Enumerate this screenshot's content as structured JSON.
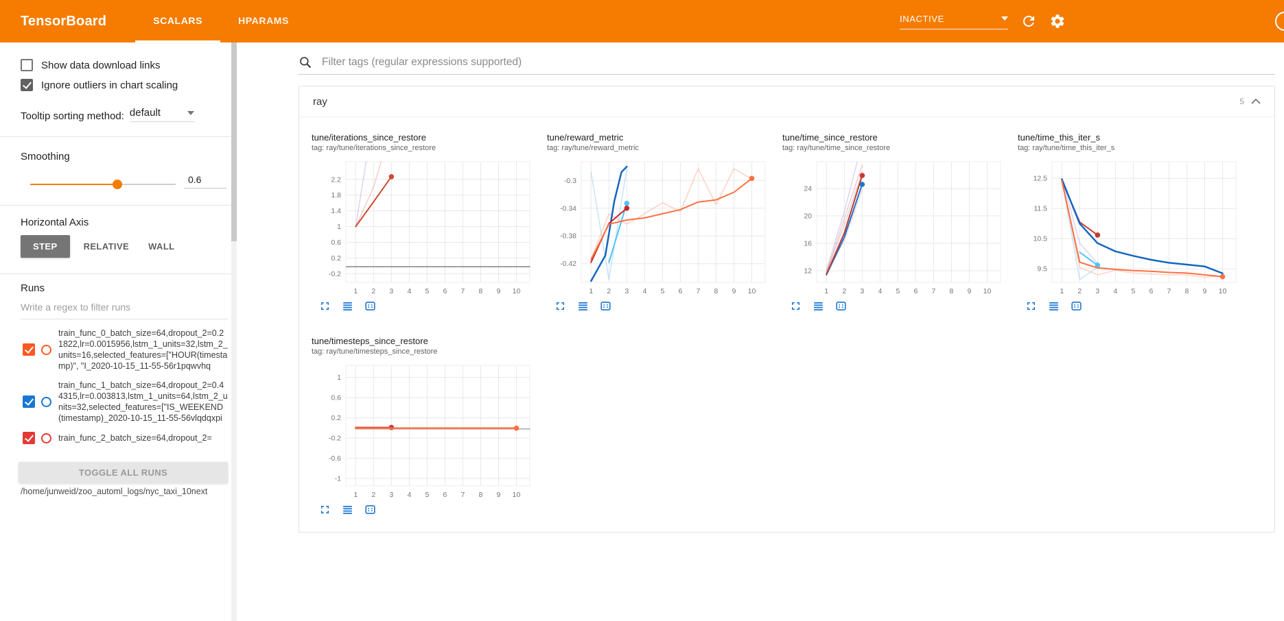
{
  "header": {
    "title": "TensorBoard",
    "tabs": [
      {
        "label": "SCALARS"
      },
      {
        "label": "HPARAMS"
      }
    ],
    "active_tab": "SCALARS",
    "status": "INACTIVE"
  },
  "colors": {
    "header_bg": "#f57c00",
    "accent_blue": "#1976d2",
    "slider_orange": "#f57c00"
  },
  "sidebar": {
    "show_data_download_links": {
      "label": "Show data download links",
      "checked": false
    },
    "ignore_outliers": {
      "label": "Ignore outliers in chart scaling",
      "checked": true
    },
    "tooltip_sorting": {
      "label": "Tooltip sorting method:",
      "value": "default"
    },
    "smoothing": {
      "label": "Smoothing",
      "value": "0.6",
      "fraction": 0.6
    },
    "horizontal_axis": {
      "label": "Horizontal Axis",
      "options": [
        "STEP",
        "RELATIVE",
        "WALL"
      ],
      "selected": "STEP"
    },
    "runs": {
      "label": "Runs",
      "filter_placeholder": "Write a regex to filter runs",
      "items": [
        {
          "label": "train_func_0_batch_size=64,dropout_2=0.21822,lr=0.0015956,lstm_1_units=32,lstm_2_units=16,selected_features=[\"HOUR(timestamp)\", \"I_2020-10-15_11-55-56r1pqwvhq",
          "checked": true,
          "color": "#ff5722"
        },
        {
          "label": "train_func_1_batch_size=64,dropout_2=0.44315,lr=0.003813,lstm_1_units=64,lstm_2_units=32,selected_features=[\"IS_WEEKEND(timestamp)_2020-10-15_11-55-56vlqdqxpi",
          "checked": true,
          "color": "#1976d2"
        },
        {
          "label": "train_func_2_batch_size=64,dropout_2=",
          "checked": true,
          "color": "#e53935"
        }
      ],
      "toggle_all_label": "TOGGLE ALL RUNS",
      "log_dir": "/home/junweid/zoo_automl_logs/nyc_taxi_10next"
    }
  },
  "main": {
    "filter_placeholder": "Filter tags (regular expressions supported)",
    "section": {
      "title": "ray",
      "count": "5"
    },
    "chart_toolbar_icons": [
      "expand-icon",
      "data-table-icon",
      "fit-domain-icon"
    ],
    "charts": [
      {
        "title": "tune/iterations_since_restore",
        "tag": "tag: ray/tune/iterations_since_restore",
        "type": "line",
        "x_ticks": [
          1,
          2,
          3,
          4,
          5,
          6,
          7,
          8,
          9,
          10
        ],
        "x_range": [
          0.45,
          10.75
        ],
        "y_ticks": [
          -0.2,
          0.2,
          0.6,
          1,
          1.4,
          1.8,
          2.2
        ],
        "y_range": [
          -0.42,
          2.65
        ],
        "series": [
          {
            "color": "#b39ddb",
            "opacity": 0.45,
            "width": 1.5,
            "points": [
              [
                1,
                1
              ],
              [
                1.62,
                2.75
              ]
            ]
          },
          {
            "color": "#e57373",
            "opacity": 0.35,
            "width": 1.5,
            "points": [
              [
                1,
                1
              ],
              [
                2,
                2
              ],
              [
                2.52,
                2.8
              ]
            ]
          },
          {
            "color": "#757575",
            "opacity": 0.9,
            "width": 1.5,
            "points": [
              [
                0.45,
                -0.02
              ],
              [
                10.75,
                -0.02
              ]
            ]
          },
          {
            "color": "#cc4b37",
            "opacity": 1,
            "width": 2,
            "points": [
              [
                1,
                1
              ],
              [
                2,
                1.63
              ],
              [
                3,
                2.27
              ]
            ],
            "end_dot": true
          }
        ]
      },
      {
        "title": "tune/reward_metric",
        "tag": "tag: ray/tune/reward_metric",
        "type": "line",
        "x_ticks": [
          1,
          2,
          3,
          4,
          5,
          6,
          7,
          8,
          9,
          10
        ],
        "x_range": [
          0.45,
          10.75
        ],
        "y_ticks": [
          -0.42,
          -0.38,
          -0.34,
          -0.3
        ],
        "y_range": [
          -0.447,
          -0.273
        ],
        "series": [
          {
            "color": "#90caf9",
            "opacity": 0.5,
            "width": 1.5,
            "points": [
              [
                1,
                -0.288
              ],
              [
                2,
                -0.443
              ],
              [
                3,
                -0.283
              ]
            ]
          },
          {
            "color": "#ffab91",
            "opacity": 0.55,
            "width": 1.5,
            "points": [
              [
                1,
                -0.413
              ],
              [
                2,
                -0.348
              ],
              [
                3,
                -0.363
              ],
              [
                4,
                -0.348
              ],
              [
                5,
                -0.332
              ],
              [
                6,
                -0.345
              ],
              [
                7,
                -0.283
              ],
              [
                8,
                -0.335
              ],
              [
                9,
                -0.283
              ],
              [
                10,
                -0.298
              ]
            ]
          },
          {
            "color": "#1565c0",
            "opacity": 1,
            "width": 2.5,
            "points": [
              [
                1,
                -0.445
              ],
              [
                1.8,
                -0.408
              ],
              [
                2.3,
                -0.33
              ],
              [
                2.7,
                -0.288
              ],
              [
                3,
                -0.28
              ]
            ]
          },
          {
            "color": "#4fc3f7",
            "opacity": 1,
            "width": 2,
            "points": [
              [
                2,
                -0.418
              ],
              [
                3,
                -0.333
              ]
            ],
            "end_dot": true
          },
          {
            "color": "#c62828",
            "opacity": 1,
            "width": 2,
            "points": [
              [
                1,
                -0.418
              ],
              [
                2,
                -0.362
              ],
              [
                3,
                -0.34
              ]
            ],
            "end_dot": true
          },
          {
            "color": "#ff7043",
            "opacity": 1,
            "width": 2,
            "points": [
              [
                1,
                -0.414
              ],
              [
                2,
                -0.363
              ],
              [
                3,
                -0.357
              ],
              [
                4,
                -0.354
              ],
              [
                5,
                -0.348
              ],
              [
                6,
                -0.342
              ],
              [
                7,
                -0.331
              ],
              [
                8,
                -0.328
              ],
              [
                9,
                -0.317
              ],
              [
                10,
                -0.297
              ]
            ],
            "end_dot": true
          }
        ]
      },
      {
        "title": "tune/time_since_restore",
        "tag": "tag: ray/tune/time_since_restore",
        "type": "line",
        "x_ticks": [
          1,
          2,
          3,
          4,
          5,
          6,
          7,
          8,
          9,
          10
        ],
        "x_range": [
          0.45,
          10.75
        ],
        "y_ticks": [
          12,
          16,
          20,
          24
        ],
        "y_range": [
          10.3,
          27.9
        ],
        "series": [
          {
            "color": "#b39ddb",
            "opacity": 0.45,
            "width": 1.5,
            "points": [
              [
                1,
                12.1
              ],
              [
                2,
                20.6
              ],
              [
                2.72,
                27.9
              ]
            ]
          },
          {
            "color": "#9e9e9e",
            "opacity": 0.4,
            "width": 1.5,
            "points": [
              [
                1,
                11.9
              ],
              [
                2,
                18.7
              ],
              [
                3,
                26.4
              ]
            ]
          },
          {
            "color": "#e57373",
            "opacity": 0.35,
            "width": 1.5,
            "points": [
              [
                1,
                11.7
              ],
              [
                2,
                19.6
              ],
              [
                3,
                27.4
              ]
            ]
          },
          {
            "color": "#ffab91",
            "opacity": 0.4,
            "width": 1.5,
            "points": [
              [
                1,
                11.6
              ],
              [
                2,
                16.4
              ],
              [
                3,
                23.8
              ]
            ]
          },
          {
            "color": "#1976d2",
            "opacity": 1,
            "width": 2,
            "points": [
              [
                1,
                11.4
              ],
              [
                2,
                16.9
              ],
              [
                3,
                24.6
              ]
            ],
            "end_dot": true
          },
          {
            "color": "#c5392f",
            "opacity": 1,
            "width": 2,
            "points": [
              [
                1,
                11.5
              ],
              [
                2,
                17.5
              ],
              [
                3,
                25.9
              ]
            ],
            "end_dot": true
          }
        ]
      },
      {
        "title": "tune/time_this_iter_s",
        "tag": "tag: ray/tune/time_this_iter_s",
        "type": "line",
        "x_ticks": [
          1,
          2,
          3,
          4,
          5,
          6,
          7,
          8,
          9,
          10
        ],
        "x_range": [
          0.45,
          10.75
        ],
        "y_ticks": [
          9.5,
          10.5,
          11.5,
          12.5
        ],
        "y_range": [
          9.05,
          13.05
        ],
        "series": [
          {
            "color": "#90caf9",
            "opacity": 0.5,
            "width": 1.5,
            "points": [
              [
                1,
                12.45
              ],
              [
                2,
                9.15
              ],
              [
                3,
                9.55
              ],
              [
                4,
                9.5
              ]
            ]
          },
          {
            "color": "#ffab91",
            "opacity": 0.5,
            "width": 1.5,
            "points": [
              [
                1,
                12.4
              ],
              [
                2,
                9.55
              ],
              [
                3,
                9.3
              ],
              [
                4,
                9.45
              ],
              [
                5,
                9.36
              ],
              [
                6,
                9.33
              ],
              [
                7,
                9.3
              ],
              [
                8,
                9.3
              ],
              [
                9,
                9.22
              ],
              [
                10,
                9.26
              ]
            ]
          },
          {
            "color": "#b39ddb",
            "opacity": 0.45,
            "width": 1.5,
            "points": [
              [
                1,
                12.5
              ],
              [
                2,
                10.35
              ],
              [
                3,
                9.68
              ]
            ]
          },
          {
            "color": "#4fc3f7",
            "opacity": 1,
            "width": 2,
            "points": [
              [
                2,
                10.05
              ],
              [
                3,
                9.62
              ]
            ],
            "end_dot": true
          },
          {
            "color": "#c5392f",
            "opacity": 1,
            "width": 2,
            "points": [
              [
                1,
                12.42
              ],
              [
                2,
                11.05
              ],
              [
                3,
                10.62
              ]
            ],
            "end_dot": true
          },
          {
            "color": "#1565c0",
            "opacity": 1,
            "width": 2.5,
            "points": [
              [
                1,
                12.47
              ],
              [
                2,
                11.0
              ],
              [
                3,
                10.35
              ],
              [
                4,
                10.08
              ],
              [
                5,
                9.93
              ],
              [
                6,
                9.8
              ],
              [
                7,
                9.7
              ],
              [
                8,
                9.64
              ],
              [
                9,
                9.58
              ],
              [
                10,
                9.35
              ]
            ]
          },
          {
            "color": "#ff7043",
            "opacity": 1,
            "width": 2,
            "points": [
              [
                1,
                12.42
              ],
              [
                2,
                9.72
              ],
              [
                3,
                9.53
              ],
              [
                4,
                9.48
              ],
              [
                5,
                9.44
              ],
              [
                6,
                9.42
              ],
              [
                7,
                9.38
              ],
              [
                8,
                9.36
              ],
              [
                9,
                9.3
              ],
              [
                10,
                9.24
              ]
            ],
            "end_dot": true
          }
        ]
      },
      {
        "title": "tune/timesteps_since_restore",
        "tag": "tag: ray/tune/timesteps_since_restore",
        "type": "line",
        "x_ticks": [
          1,
          2,
          3,
          4,
          5,
          6,
          7,
          8,
          9,
          10
        ],
        "x_range": [
          0.45,
          10.75
        ],
        "y_ticks": [
          -1,
          -0.6,
          -0.2,
          0.2,
          0.6,
          1
        ],
        "y_range": [
          -1.15,
          1.24
        ],
        "series": [
          {
            "color": "#9e9e9e",
            "opacity": 0.9,
            "width": 1.5,
            "points": [
              [
                1,
                -0.02
              ],
              [
                10.75,
                -0.02
              ]
            ]
          },
          {
            "color": "#c5392f",
            "opacity": 1,
            "width": 2,
            "points": [
              [
                1,
                0.01
              ],
              [
                3,
                0.01
              ]
            ],
            "end_dot": true
          },
          {
            "color": "#ff7043",
            "opacity": 1,
            "width": 2.5,
            "points": [
              [
                1,
                -0.005
              ],
              [
                10,
                -0.005
              ]
            ],
            "end_dot": true
          }
        ]
      }
    ]
  }
}
